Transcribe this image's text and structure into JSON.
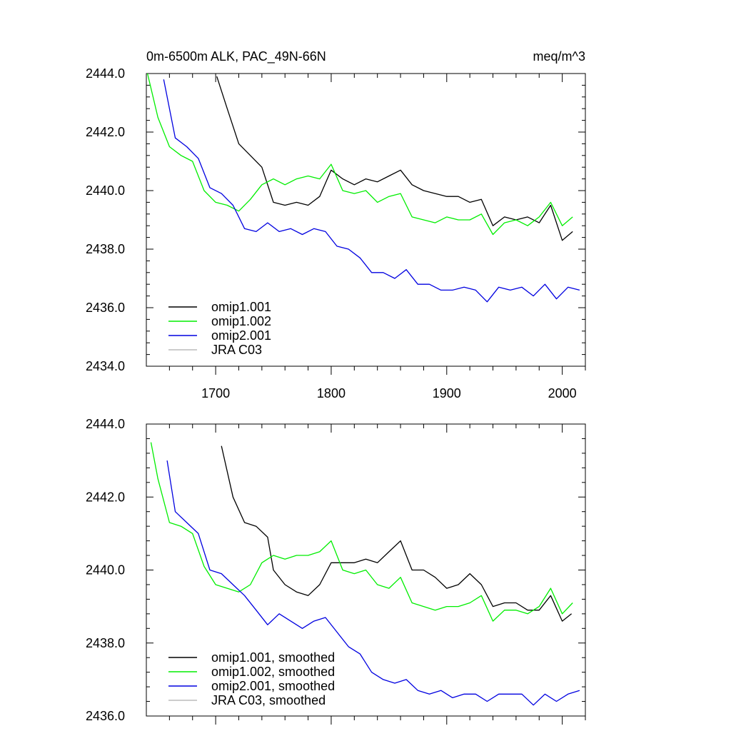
{
  "chart_data": [
    {
      "type": "line",
      "title": "0m-6500m ALK, PAC_49N-66N",
      "units": "meq/m^3",
      "xlim": [
        1640,
        2020
      ],
      "ylim": [
        2434,
        2444
      ],
      "x_ticks": [
        1700,
        1800,
        1900,
        2000
      ],
      "y_ticks": [
        2434.0,
        2436.0,
        2438.0,
        2440.0,
        2442.0,
        2444.0
      ],
      "y_tick_labels": [
        "2434.0",
        "2436.0",
        "2438.0",
        "2440.0",
        "2442.0",
        "2444.0"
      ],
      "x_tick_labels": [
        "1700",
        "1800",
        "1900",
        "2000"
      ],
      "legend_position": "bottom-left",
      "series": [
        {
          "name": "omip1.001",
          "color": "#000000",
          "x": [
            1701,
            1710,
            1720,
            1730,
            1740,
            1750,
            1760,
            1770,
            1780,
            1790,
            1800,
            1810,
            1820,
            1830,
            1840,
            1850,
            1860,
            1870,
            1880,
            1890,
            1900,
            1910,
            1920,
            1930,
            1940,
            1950,
            1960,
            1970,
            1980,
            1990,
            2000,
            2009
          ],
          "y": [
            2443.9,
            2442.8,
            2441.6,
            2441.2,
            2440.8,
            2439.6,
            2439.5,
            2439.6,
            2439.5,
            2439.8,
            2440.7,
            2440.4,
            2440.2,
            2440.4,
            2440.3,
            2440.5,
            2440.7,
            2440.2,
            2440.0,
            2439.9,
            2439.8,
            2439.8,
            2439.6,
            2439.7,
            2438.8,
            2439.1,
            2439.0,
            2439.1,
            2438.9,
            2439.5,
            2438.3,
            2438.6
          ]
        },
        {
          "name": "omip1.002",
          "color": "#00ee00",
          "x": [
            1641,
            1650,
            1660,
            1670,
            1680,
            1690,
            1700,
            1710,
            1720,
            1730,
            1740,
            1750,
            1760,
            1770,
            1780,
            1790,
            1800,
            1810,
            1820,
            1830,
            1840,
            1850,
            1860,
            1870,
            1880,
            1890,
            1900,
            1910,
            1920,
            1930,
            1940,
            1950,
            1960,
            1970,
            1980,
            1990,
            2000,
            2009
          ],
          "y": [
            2444.0,
            2442.5,
            2441.5,
            2441.2,
            2441.0,
            2440.0,
            2439.6,
            2439.5,
            2439.3,
            2439.7,
            2440.2,
            2440.4,
            2440.2,
            2440.4,
            2440.5,
            2440.4,
            2440.9,
            2440.0,
            2439.9,
            2440.0,
            2439.6,
            2439.8,
            2439.9,
            2439.1,
            2439.0,
            2438.9,
            2439.1,
            2439.0,
            2439.0,
            2439.2,
            2438.5,
            2438.9,
            2439.0,
            2438.8,
            2439.1,
            2439.6,
            2438.8,
            2439.1
          ]
        },
        {
          "name": "omip2.001",
          "color": "#0000e0",
          "x": [
            1655,
            1665,
            1675,
            1685,
            1695,
            1705,
            1715,
            1725,
            1735,
            1745,
            1755,
            1765,
            1775,
            1785,
            1795,
            1805,
            1815,
            1825,
            1835,
            1845,
            1855,
            1865,
            1875,
            1885,
            1895,
            1905,
            1915,
            1925,
            1935,
            1945,
            1955,
            1965,
            1975,
            1985,
            1995,
            2005,
            2015
          ],
          "y": [
            2443.8,
            2441.8,
            2441.5,
            2441.1,
            2440.1,
            2439.9,
            2439.5,
            2438.7,
            2438.6,
            2438.9,
            2438.6,
            2438.7,
            2438.5,
            2438.7,
            2438.6,
            2438.1,
            2438.0,
            2437.7,
            2437.2,
            2437.2,
            2437.0,
            2437.3,
            2436.8,
            2436.8,
            2436.6,
            2436.6,
            2436.7,
            2436.6,
            2436.2,
            2436.7,
            2436.6,
            2436.7,
            2436.4,
            2436.8,
            2436.3,
            2436.7,
            2436.6
          ]
        },
        {
          "name": "JRA C03",
          "color": "#bbbbbb",
          "x": [],
          "y": []
        }
      ]
    },
    {
      "type": "line",
      "title": "",
      "units": "",
      "xlim": [
        1640,
        2020
      ],
      "ylim": [
        2436,
        2444
      ],
      "x_ticks": [
        1700,
        1800,
        1900,
        2000
      ],
      "y_ticks": [
        2436.0,
        2438.0,
        2440.0,
        2442.0,
        2444.0
      ],
      "y_tick_labels": [
        "2436.0",
        "2438.0",
        "2440.0",
        "2442.0",
        "2444.0"
      ],
      "x_tick_labels": [],
      "legend_position": "bottom-left",
      "series": [
        {
          "name": "omip1.001, smoothed",
          "color": "#000000",
          "x": [
            1705,
            1715,
            1725,
            1735,
            1745,
            1750,
            1760,
            1770,
            1780,
            1790,
            1800,
            1810,
            1820,
            1830,
            1840,
            1850,
            1860,
            1870,
            1880,
            1890,
            1900,
            1910,
            1920,
            1930,
            1940,
            1950,
            1960,
            1970,
            1980,
            1990,
            2000,
            2008
          ],
          "y": [
            2443.4,
            2442.0,
            2441.3,
            2441.2,
            2440.9,
            2440.0,
            2439.6,
            2439.4,
            2439.3,
            2439.6,
            2440.2,
            2440.2,
            2440.2,
            2440.3,
            2440.2,
            2440.5,
            2440.8,
            2440.0,
            2440.0,
            2439.8,
            2439.5,
            2439.6,
            2439.9,
            2439.6,
            2439.0,
            2439.1,
            2439.1,
            2438.9,
            2438.9,
            2439.3,
            2438.6,
            2438.8
          ]
        },
        {
          "name": "omip1.002, smoothed",
          "color": "#00ee00",
          "x": [
            1644,
            1650,
            1660,
            1670,
            1680,
            1690,
            1700,
            1710,
            1720,
            1730,
            1740,
            1750,
            1760,
            1770,
            1780,
            1790,
            1800,
            1810,
            1820,
            1830,
            1840,
            1850,
            1860,
            1870,
            1880,
            1890,
            1900,
            1910,
            1920,
            1930,
            1940,
            1950,
            1960,
            1970,
            1980,
            1990,
            2000,
            2009
          ],
          "y": [
            2443.5,
            2442.5,
            2441.3,
            2441.2,
            2441.0,
            2440.1,
            2439.6,
            2439.5,
            2439.4,
            2439.6,
            2440.2,
            2440.4,
            2440.3,
            2440.4,
            2440.4,
            2440.5,
            2440.8,
            2440.0,
            2439.9,
            2440.0,
            2439.6,
            2439.5,
            2439.8,
            2439.1,
            2439.0,
            2438.9,
            2439.0,
            2439.0,
            2439.1,
            2439.3,
            2438.6,
            2438.9,
            2438.9,
            2438.8,
            2439.0,
            2439.5,
            2438.8,
            2439.1
          ]
        },
        {
          "name": "omip2.001, smoothed",
          "color": "#0000e0",
          "x": [
            1658,
            1665,
            1675,
            1685,
            1695,
            1705,
            1715,
            1725,
            1735,
            1745,
            1755,
            1765,
            1775,
            1785,
            1795,
            1805,
            1815,
            1825,
            1835,
            1845,
            1855,
            1865,
            1875,
            1885,
            1895,
            1905,
            1915,
            1925,
            1935,
            1945,
            1955,
            1965,
            1975,
            1985,
            1995,
            2005,
            2015
          ],
          "y": [
            2443.0,
            2441.6,
            2441.3,
            2441.0,
            2440.0,
            2439.9,
            2439.6,
            2439.3,
            2438.9,
            2438.5,
            2438.8,
            2438.6,
            2438.4,
            2438.6,
            2438.7,
            2438.3,
            2437.9,
            2437.7,
            2437.2,
            2437.0,
            2436.9,
            2437.0,
            2436.7,
            2436.6,
            2436.7,
            2436.5,
            2436.6,
            2436.6,
            2436.4,
            2436.6,
            2436.6,
            2436.6,
            2436.3,
            2436.6,
            2436.4,
            2436.6,
            2436.7
          ]
        },
        {
          "name": "JRA C03, smoothed",
          "color": "#bbbbbb",
          "x": [],
          "y": []
        }
      ]
    }
  ]
}
